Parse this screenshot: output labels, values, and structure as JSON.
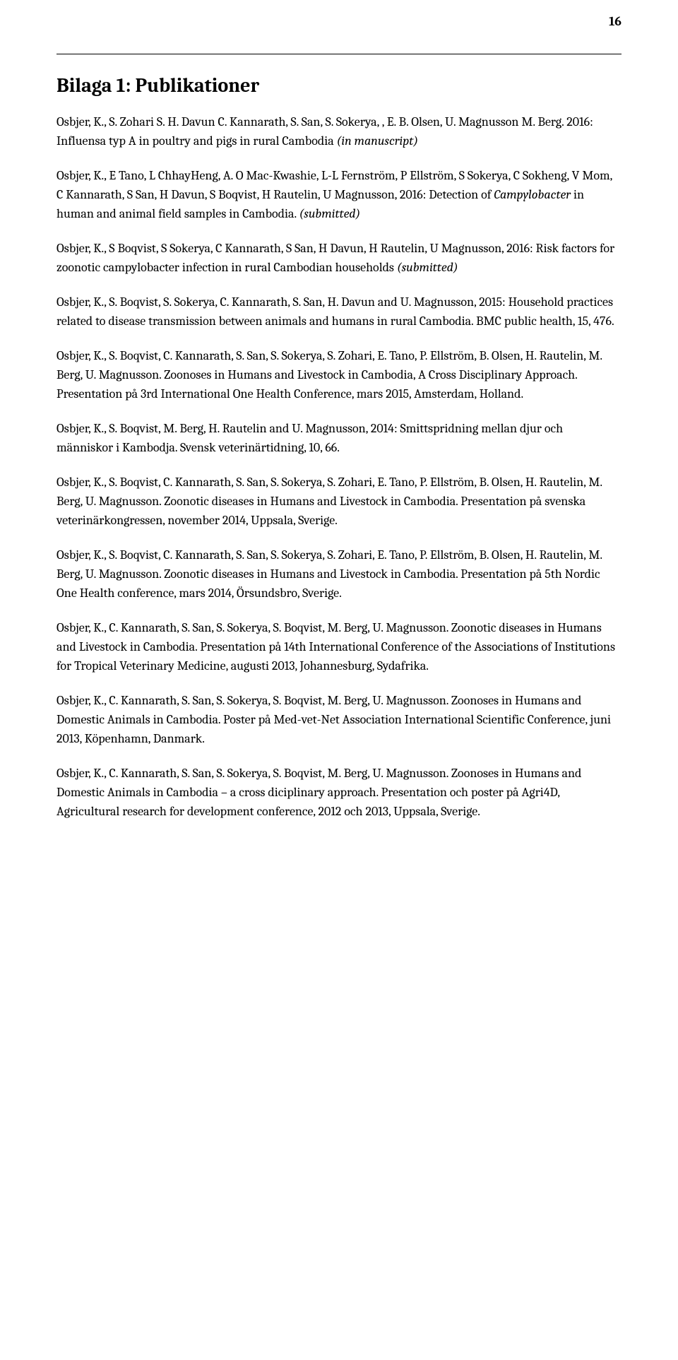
{
  "page_number": "16",
  "title": "Bilaga 1: Publikationer",
  "pubs": [
    {
      "a": "Osbjer, K., S. Zohari S. H. Davun C. Kannarath, S. San, S. Sokerya, , E. B. Olsen, U. Magnusson M. Berg. 2016: Influensa typ A in poultry and pigs in rural Cambodia ",
      "i": "(in manuscript)",
      "b": ""
    },
    {
      "a": "Osbjer, K., E Tano, L ChhayHeng, A. O Mac-Kwashie, L-L Fernström, P Ellström, S Sokerya, C Sokheng, V Mom, C Kannarath, S San, H Davun, S Boqvist, H Rautelin, U Magnusson, 2016: Detection of ",
      "i": "Campylobacter",
      "b": " in human and animal field samples in Cambodia. ",
      "i2": "(submitted)",
      "c": ""
    },
    {
      "a": "Osbjer, K., S Boqvist, S Sokerya, C Kannarath, S San, H Davun, H Rautelin, U Magnusson, 2016:  Risk factors for zoonotic campylobacter infection in rural Cambodian households ",
      "i": "(submitted)",
      "b": ""
    },
    {
      "a": "Osbjer, K., S. Boqvist, S. Sokerya, C. Kannarath, S. San, H. Davun and U. Magnusson, 2015: Household practices related to disease transmission between animals and humans in rural Cambodia. BMC public health, 15, 476.",
      "i": "",
      "b": ""
    },
    {
      "a": "Osbjer, K., S. Boqvist, C. Kannarath, S. San, S. Sokerya, S. Zohari, E. Tano, P. Ellström, B. Olsen, H. Rautelin, M. Berg, U. Magnusson. Zoonoses in Humans and Livestock in Cambodia, A Cross Disciplinary Approach. Presentation på 3rd International One Health Conference, mars 2015, Amsterdam, Holland.",
      "i": "",
      "b": ""
    },
    {
      "a": "Osbjer, K., S. Boqvist, M. Berg, H. Rautelin and U. Magnusson, 2014: Smittspridning mellan djur och människor i Kambodja. Svensk veterinärtidning, 10, 66.",
      "i": "",
      "b": ""
    },
    {
      "a": "Osbjer, K., S. Boqvist, C. Kannarath, S. San, S. Sokerya, S. Zohari, E. Tano, P. Ellström, B. Olsen, H. Rautelin, M. Berg, U. Magnusson. Zoonotic diseases in Humans and Livestock in Cambodia. Presentation på svenska veterinärkongressen, november 2014, Uppsala, Sverige.",
      "i": "",
      "b": ""
    },
    {
      "a": "Osbjer, K., S. Boqvist, C. Kannarath, S. San, S. Sokerya, S. Zohari, E. Tano, P. Ellström, B. Olsen, H. Rautelin, M. Berg, U. Magnusson. Zoonotic diseases in Humans and Livestock in Cambodia. Presentation på 5th Nordic One Health conference, mars 2014, Örsundsbro, Sverige.",
      "i": "",
      "b": ""
    },
    {
      "a": "Osbjer, K., C. Kannarath, S. San, S. Sokerya, S. Boqvist, M. Berg, U. Magnusson. Zoonotic diseases in Humans and Livestock in Cambodia. Presentation på 14th International Conference of the Associations of Institutions for Tropical Veterinary Medicine, augusti 2013, Johannesburg, Sydafrika.",
      "i": "",
      "b": ""
    },
    {
      "a": "Osbjer, K., C. Kannarath, S. San, S. Sokerya, S. Boqvist, M. Berg, U. Magnusson. Zoonoses in Humans and Domestic Animals in Cambodia. Poster på Med-vet-Net Association International Scientific Conference, juni 2013, Köpenhamn, Danmark.",
      "i": "",
      "b": ""
    },
    {
      "a": "Osbjer, K., C. Kannarath, S. San, S. Sokerya, S. Boqvist, M. Berg, U. Magnusson. Zoonoses in Humans and Domestic Animals in Cambodia – a cross diciplinary approach. Presentation och poster på Agri4D, Agricultural research for development conference, 2012 och 2013, Uppsala, Sverige.",
      "i": "",
      "b": ""
    }
  ]
}
